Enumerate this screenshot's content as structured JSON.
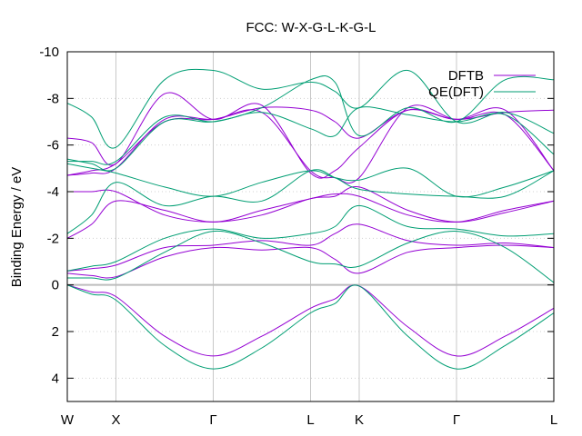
{
  "chart_data": {
    "type": "line",
    "title": "FCC: W-X-G-L-K-G-L",
    "ylabel": "Binding Energy / eV",
    "xlabel": "",
    "ylim": [
      5,
      -10
    ],
    "yticks": [
      4,
      2,
      0,
      -2,
      -4,
      -6,
      -8,
      -10
    ],
    "xticks": [
      {
        "label": "W",
        "x": 0
      },
      {
        "label": "X",
        "x": 1
      },
      {
        "label": "Γ",
        "x": 3
      },
      {
        "label": "L",
        "x": 5
      },
      {
        "label": "K",
        "x": 6
      },
      {
        "label": "Γ",
        "x": 8
      },
      {
        "label": "L",
        "x": 10
      }
    ],
    "xlim": [
      0,
      10
    ],
    "grid": true,
    "legend_position": "top-right",
    "series": [
      {
        "name": "DFTB",
        "color": "#9400d3",
        "bands": [
          [
            [
              0,
              0
            ],
            [
              0.5,
              0.3
            ],
            [
              1,
              0.5
            ],
            [
              2,
              2.2
            ],
            [
              3,
              3.05
            ],
            [
              4,
              2.2
            ],
            [
              5,
              1.0
            ],
            [
              5.5,
              0.6
            ],
            [
              6,
              0.05
            ],
            [
              7,
              1.8
            ],
            [
              8,
              3.05
            ],
            [
              9,
              2.2
            ],
            [
              10,
              1.0
            ]
          ],
          [
            [
              0,
              -0.5
            ],
            [
              0.5,
              -0.4
            ],
            [
              1,
              -0.35
            ],
            [
              2,
              -1.2
            ],
            [
              3,
              -1.6
            ],
            [
              4,
              -1.5
            ],
            [
              5,
              -1.6
            ],
            [
              5.5,
              -1.1
            ],
            [
              6,
              -0.5
            ],
            [
              7,
              -1.4
            ],
            [
              8,
              -1.6
            ],
            [
              9,
              -1.7
            ],
            [
              10,
              -1.6
            ]
          ],
          [
            [
              0,
              -0.6
            ],
            [
              0.5,
              -0.7
            ],
            [
              1,
              -0.85
            ],
            [
              2,
              -1.6
            ],
            [
              3,
              -1.7
            ],
            [
              4,
              -1.9
            ],
            [
              5,
              -1.7
            ],
            [
              5.5,
              -2.2
            ],
            [
              6,
              -2.6
            ],
            [
              7,
              -1.9
            ],
            [
              8,
              -1.7
            ],
            [
              9,
              -1.8
            ],
            [
              10,
              -1.6
            ]
          ],
          [
            [
              0,
              -2
            ],
            [
              0.5,
              -2.6
            ],
            [
              1,
              -3.6
            ],
            [
              2,
              -3.2
            ],
            [
              3,
              -2.7
            ],
            [
              4,
              -3.2
            ],
            [
              5,
              -3.7
            ],
            [
              5.5,
              -3.9
            ],
            [
              6,
              -3.8
            ],
            [
              7,
              -3.0
            ],
            [
              8,
              -2.7
            ],
            [
              9,
              -3.2
            ],
            [
              10,
              -3.6
            ]
          ],
          [
            [
              0,
              -4
            ],
            [
              0.5,
              -4.0
            ],
            [
              1,
              -4.0
            ],
            [
              2,
              -3.0
            ],
            [
              3,
              -2.7
            ],
            [
              4,
              -3.0
            ],
            [
              5,
              -3.7
            ],
            [
              5.5,
              -3.8
            ],
            [
              6,
              -4.2
            ],
            [
              7,
              -3.2
            ],
            [
              8,
              -2.7
            ],
            [
              9,
              -3.1
            ],
            [
              10,
              -3.6
            ]
          ],
          [
            [
              0,
              -4.7
            ],
            [
              0.5,
              -4.9
            ],
            [
              1,
              -5.2
            ],
            [
              2,
              -7.0
            ],
            [
              3,
              -7.1
            ],
            [
              4,
              -7.6
            ],
            [
              5,
              -7.5
            ],
            [
              5.5,
              -7.0
            ],
            [
              6,
              -6.3
            ],
            [
              7,
              -7.5
            ],
            [
              8,
              -7.1
            ],
            [
              9,
              -7.4
            ],
            [
              10,
              -7.5
            ]
          ],
          [
            [
              0,
              -6.3
            ],
            [
              0.5,
              -6.1
            ],
            [
              1,
              -5.2
            ],
            [
              2,
              -8.2
            ],
            [
              3,
              -7.1
            ],
            [
              4,
              -7.7
            ],
            [
              5,
              -4.8
            ],
            [
              5.5,
              -4.9
            ],
            [
              6,
              -5.9
            ],
            [
              7,
              -7.5
            ],
            [
              8,
              -7.1
            ],
            [
              9,
              -7.5
            ],
            [
              10,
              -4.9
            ]
          ],
          [
            [
              0,
              -4.7
            ],
            [
              0.5,
              -4.8
            ],
            [
              1,
              -5.0
            ],
            [
              2,
              -7.1
            ],
            [
              3,
              -7.1
            ],
            [
              4,
              -7.4
            ],
            [
              5,
              -4.9
            ],
            [
              5.5,
              -4.6
            ],
            [
              6,
              -4.6
            ],
            [
              7,
              -7.6
            ],
            [
              8,
              -7.1
            ],
            [
              9,
              -7.3
            ],
            [
              10,
              -4.9
            ]
          ]
        ]
      },
      {
        "name": "QE(DFT)",
        "color": "#009e73",
        "bands": [
          [
            [
              0,
              0
            ],
            [
              0.5,
              0.4
            ],
            [
              1,
              0.65
            ],
            [
              2,
              2.6
            ],
            [
              3,
              3.6
            ],
            [
              4,
              2.7
            ],
            [
              5,
              1.2
            ],
            [
              5.5,
              0.8
            ],
            [
              6,
              0.05
            ],
            [
              7,
              2.2
            ],
            [
              8,
              3.6
            ],
            [
              9,
              2.6
            ],
            [
              10,
              1.2
            ]
          ],
          [
            [
              0,
              -0.3
            ],
            [
              0.5,
              -0.3
            ],
            [
              1,
              -0.3
            ],
            [
              2,
              -1.4
            ],
            [
              3,
              -2.3
            ],
            [
              4,
              -1.8
            ],
            [
              5,
              -1.0
            ],
            [
              5.5,
              -0.9
            ],
            [
              6,
              -0.8
            ],
            [
              7,
              -1.8
            ],
            [
              8,
              -2.3
            ],
            [
              9,
              -1.6
            ],
            [
              10,
              -0.1
            ]
          ],
          [
            [
              0,
              -0.6
            ],
            [
              0.5,
              -0.8
            ],
            [
              1,
              -1.0
            ],
            [
              2,
              -2.0
            ],
            [
              3,
              -2.4
            ],
            [
              4,
              -2.0
            ],
            [
              5,
              -2.2
            ],
            [
              5.5,
              -2.5
            ],
            [
              6,
              -3.4
            ],
            [
              7,
              -2.5
            ],
            [
              8,
              -2.4
            ],
            [
              9,
              -2.1
            ],
            [
              10,
              -2.2
            ]
          ],
          [
            [
              0,
              -2.2
            ],
            [
              0.5,
              -3.0
            ],
            [
              1,
              -4.4
            ],
            [
              2,
              -3.4
            ],
            [
              3,
              -3.8
            ],
            [
              4,
              -3.6
            ],
            [
              5,
              -4.9
            ],
            [
              5.5,
              -4.6
            ],
            [
              6,
              -4.1
            ],
            [
              7,
              -3.9
            ],
            [
              8,
              -3.8
            ],
            [
              9,
              -3.8
            ],
            [
              10,
              -4.9
            ]
          ],
          [
            [
              0,
              -5.2
            ],
            [
              0.5,
              -5.0
            ],
            [
              1,
              -4.8
            ],
            [
              2,
              -4.2
            ],
            [
              3,
              -3.8
            ],
            [
              4,
              -4.4
            ],
            [
              5,
              -4.9
            ],
            [
              5.5,
              -4.6
            ],
            [
              6,
              -4.5
            ],
            [
              7,
              -5.0
            ],
            [
              8,
              -3.8
            ],
            [
              9,
              -4.2
            ],
            [
              10,
              -4.9
            ]
          ],
          [
            [
              0,
              -5.3
            ],
            [
              0.5,
              -5.3
            ],
            [
              1,
              -5.3
            ],
            [
              2,
              -7.2
            ],
            [
              3,
              -7.0
            ],
            [
              4,
              -7.4
            ],
            [
              5,
              -6.7
            ],
            [
              5.5,
              -6.4
            ],
            [
              6,
              -7.6
            ],
            [
              7,
              -7.3
            ],
            [
              8,
              -7.0
            ],
            [
              9,
              -7.3
            ],
            [
              10,
              -5.6
            ]
          ],
          [
            [
              0,
              -7.8
            ],
            [
              0.5,
              -7.2
            ],
            [
              1,
              -5.9
            ],
            [
              2,
              -8.8
            ],
            [
              3,
              -9.2
            ],
            [
              4,
              -8.4
            ],
            [
              5,
              -8.7
            ],
            [
              5.5,
              -8.3
            ],
            [
              6,
              -7.6
            ],
            [
              7,
              -9.2
            ],
            [
              8,
              -7.0
            ],
            [
              9,
              -7.4
            ],
            [
              10,
              -6.5
            ]
          ],
          [
            [
              0,
              -5.4
            ],
            [
              0.5,
              -5.2
            ],
            [
              1,
              -5.0
            ],
            [
              2,
              -7.0
            ],
            [
              3,
              -7.0
            ],
            [
              4,
              -7.6
            ],
            [
              5,
              -8.8
            ],
            [
              5.5,
              -8.7
            ],
            [
              6,
              -6.4
            ],
            [
              7,
              -7.6
            ],
            [
              8,
              -7.0
            ],
            [
              9,
              -8.8
            ],
            [
              10,
              -8.8
            ]
          ]
        ]
      }
    ]
  }
}
